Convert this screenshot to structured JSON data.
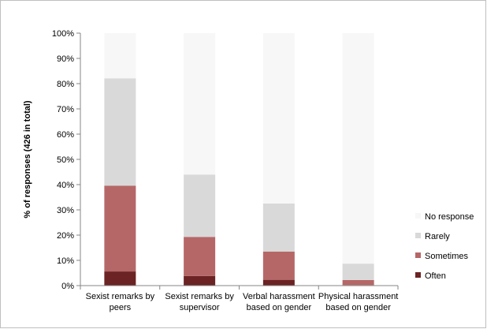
{
  "chart_data": {
    "type": "bar",
    "stacked": true,
    "categories": [
      "Sexist remarks by peers",
      "Sexist remarks by supervisor",
      "Verbal harassment based on gender",
      "Physical harassment based on gender"
    ],
    "category_lines": [
      [
        "Sexist remarks by",
        "peers"
      ],
      [
        "Sexist remarks by",
        "supervisor"
      ],
      [
        "Verbal harassment",
        "based on gender"
      ],
      [
        "Physical harassment",
        "based on gender"
      ]
    ],
    "series": [
      {
        "name": "Often",
        "color": "#6b2323",
        "values": [
          5.6,
          3.8,
          2.3,
          0.2
        ]
      },
      {
        "name": "Sometimes",
        "color": "#b56767",
        "values": [
          34.0,
          15.5,
          11.2,
          2.0
        ]
      },
      {
        "name": "Rarely",
        "color": "#d9d9d9",
        "values": [
          42.5,
          24.7,
          19.0,
          6.5
        ]
      },
      {
        "name": "No response",
        "color": "#f7f7f7",
        "values": [
          17.9,
          56.0,
          67.5,
          91.3
        ]
      }
    ],
    "legend_order": [
      "No response",
      "Rarely",
      "Sometimes",
      "Often"
    ],
    "legend_position": "right",
    "ylabel": "% of responses (426 in total)",
    "ylim": [
      0,
      100
    ],
    "yticks": [
      "0%",
      "10%",
      "20%",
      "30%",
      "40%",
      "50%",
      "60%",
      "70%",
      "80%",
      "90%",
      "100%"
    ],
    "grid": false
  }
}
